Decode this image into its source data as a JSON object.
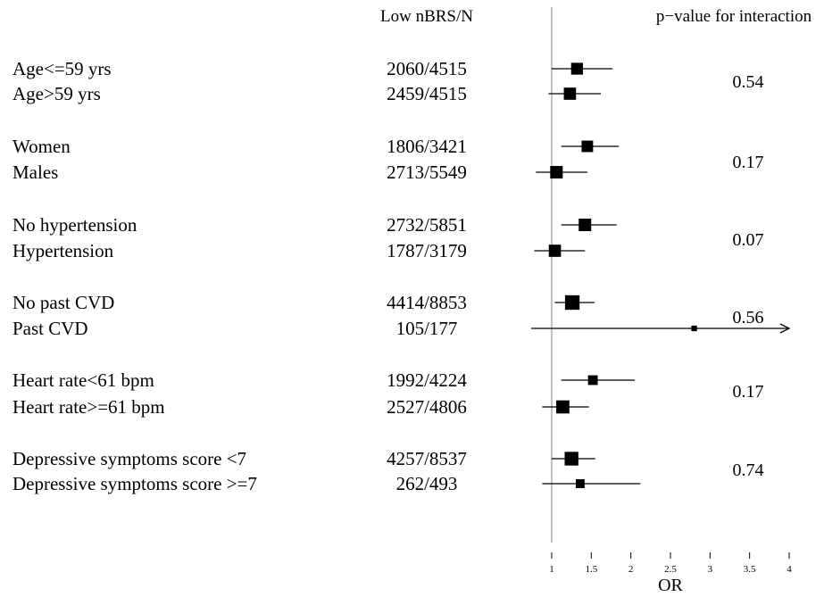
{
  "chart_data": {
    "type": "forest",
    "header_count": "Low nBRS/N",
    "header_pvalue": "p−value for interaction",
    "xlabel": "OR",
    "xlim": [
      1,
      4
    ],
    "reference_line": 1,
    "xticks": [
      "1",
      "1.5",
      "2",
      "2.5",
      "3",
      "3.5",
      "4"
    ],
    "rows": [
      {
        "label": "Age<=59 yrs",
        "count": "2060/4515",
        "or": 1.32,
        "ci": [
          1.0,
          1.77
        ],
        "weight": 0.9
      },
      {
        "label": "Age>59 yrs",
        "count": "2459/4515",
        "or": 1.23,
        "ci": [
          0.96,
          1.62
        ],
        "weight": 0.95
      },
      {
        "label": "Women",
        "count": "1806/3421",
        "or": 1.45,
        "ci": [
          1.12,
          1.85
        ],
        "weight": 0.85
      },
      {
        "label": "Males",
        "count": "2713/5549",
        "or": 1.06,
        "ci": [
          0.8,
          1.45
        ],
        "weight": 1.0
      },
      {
        "label": "No hypertension",
        "count": "2732/5851",
        "or": 1.42,
        "ci": [
          1.12,
          1.82
        ],
        "weight": 1.0
      },
      {
        "label": "Hypertension",
        "count": "1787/3179",
        "or": 1.04,
        "ci": [
          0.78,
          1.42
        ],
        "weight": 0.95
      },
      {
        "label": "No past CVD",
        "count": "4414/8853",
        "or": 1.26,
        "ci": [
          1.04,
          1.54
        ],
        "weight": 1.35
      },
      {
        "label": "Past CVD",
        "count": "105/177",
        "or": 2.8,
        "ci": [
          0.74,
          4.0
        ],
        "weight": 0.2,
        "arrow": true
      },
      {
        "label": "Heart rate<61 bpm",
        "count": "1992/4224",
        "or": 1.52,
        "ci": [
          1.12,
          2.05
        ],
        "weight": 0.6
      },
      {
        "label": "Heart rate>=61 bpm",
        "count": "2527/4806",
        "or": 1.14,
        "ci": [
          0.88,
          1.47
        ],
        "weight": 1.1
      },
      {
        "label": "Depressive symptoms score <7",
        "count": "4257/8537",
        "or": 1.25,
        "ci": [
          1.0,
          1.55
        ],
        "weight": 1.2
      },
      {
        "label": "Depressive symptoms score >=7",
        "count": "262/493",
        "or": 1.36,
        "ci": [
          0.88,
          2.12
        ],
        "weight": 0.5
      }
    ],
    "interaction_pvalues": [
      "0.54",
      "0.17",
      "0.07",
      "0.56",
      "0.17",
      "0.74"
    ]
  }
}
